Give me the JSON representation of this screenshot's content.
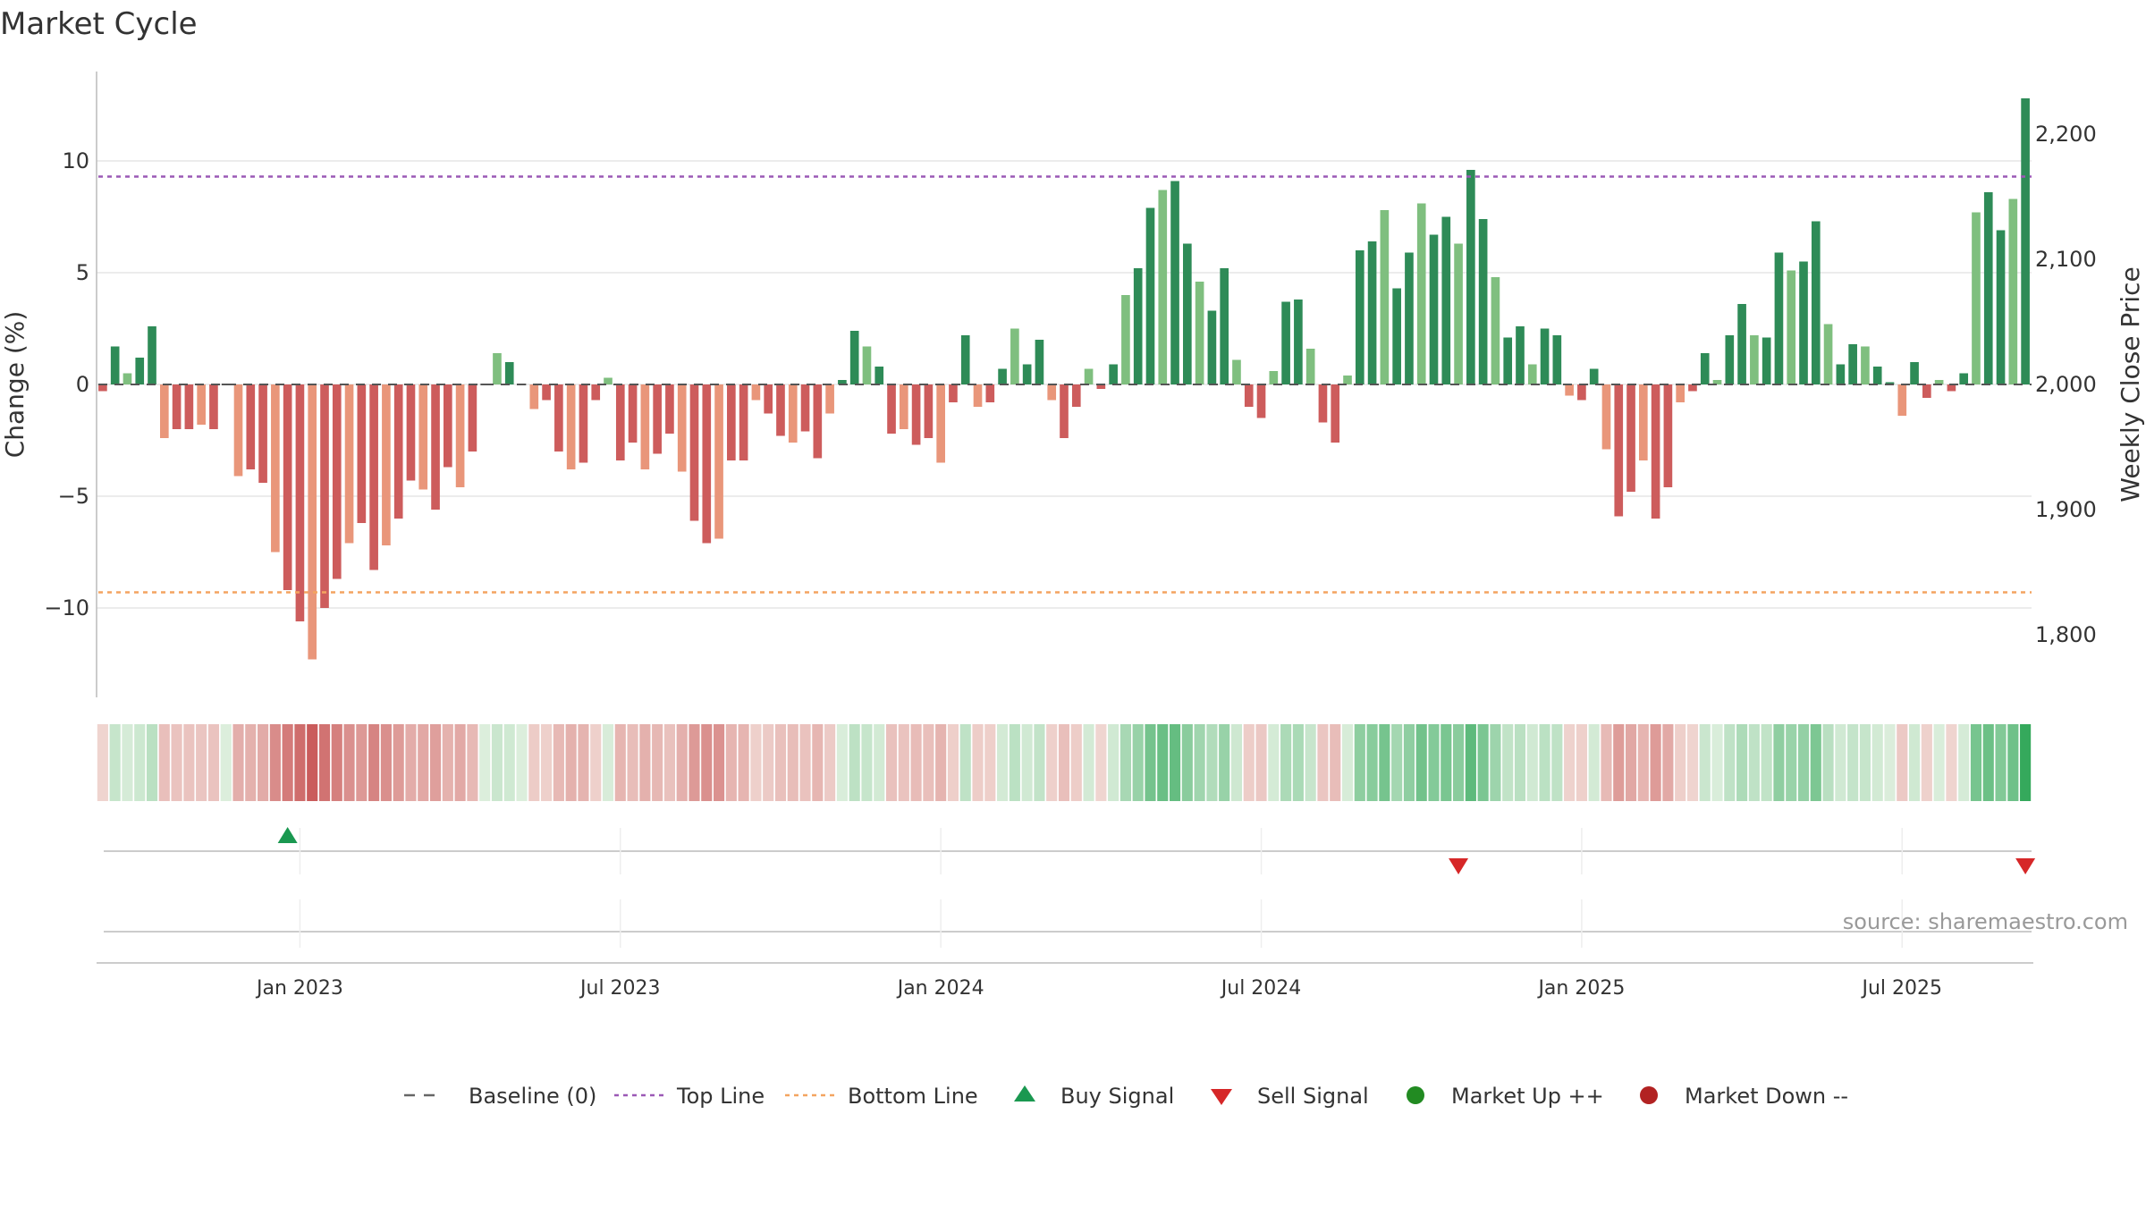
{
  "title": "Market Cycle",
  "source": "source: sharemaestro.com",
  "colors": {
    "up_strong": "#2e8b57",
    "up_light": "#7fbf7f",
    "down_strong": "#cd5c5c",
    "down_light": "#e9967a",
    "top_line": "#9b59b6",
    "bottom_line": "#f4a460",
    "buy": "#1a9850",
    "sell": "#d62728",
    "market_up": "#228b22",
    "market_down": "#b22222"
  },
  "chart_data": {
    "type": "bar",
    "ylabel_left": "Change (%)",
    "ylabel_right": "Weekly Close Price",
    "ylim_left": [
      -14,
      14
    ],
    "ylim_right": [
      1750,
      2250
    ],
    "yticks_left": [
      {
        "v": 10,
        "label": "10"
      },
      {
        "v": 5,
        "label": "5"
      },
      {
        "v": 0,
        "label": "0"
      },
      {
        "v": -5,
        "label": "−5"
      },
      {
        "v": -10,
        "label": "−10"
      }
    ],
    "yticks_right": [
      {
        "v": 2200,
        "label": "2,200"
      },
      {
        "v": 2100,
        "label": "2,100"
      },
      {
        "v": 2000,
        "label": "2,000"
      },
      {
        "v": 1900,
        "label": "1,900"
      },
      {
        "v": 1800,
        "label": "1,800"
      }
    ],
    "top_line": 9.3,
    "bottom_line": -9.3,
    "xticks": [
      {
        "i": 16,
        "label": "Jan 2023"
      },
      {
        "i": 42,
        "label": "Jul 2023"
      },
      {
        "i": 68,
        "label": "Jan 2024"
      },
      {
        "i": 94,
        "label": "Jul 2024"
      },
      {
        "i": 120,
        "label": "Jan 2025"
      },
      {
        "i": 146,
        "label": "Jul 2025"
      }
    ],
    "values": [
      -0.3,
      1.7,
      0.5,
      1.2,
      2.6,
      -2.4,
      -2.0,
      -2.0,
      -1.8,
      -2.0,
      0,
      -4.1,
      -3.8,
      -4.4,
      -7.5,
      -9.2,
      -10.6,
      -12.3,
      -10.0,
      -8.7,
      -7.1,
      -6.2,
      -8.3,
      -7.2,
      -6.0,
      -4.3,
      -4.7,
      -5.6,
      -3.7,
      -4.6,
      -3.0,
      0,
      1.4,
      1.0,
      0,
      -1.1,
      -0.7,
      -3.0,
      -3.8,
      -3.5,
      -0.7,
      0.3,
      -3.4,
      -2.6,
      -3.8,
      -3.1,
      -2.2,
      -3.9,
      -6.1,
      -7.1,
      -6.9,
      -3.4,
      -3.4,
      -0.7,
      -1.3,
      -2.3,
      -2.6,
      -2.1,
      -3.3,
      -1.3,
      0.2,
      2.4,
      1.7,
      0.8,
      -2.2,
      -2.0,
      -2.7,
      -2.4,
      -3.5,
      -0.8,
      2.2,
      -1.0,
      -0.8,
      0.7,
      2.5,
      0.9,
      2.0,
      -0.7,
      -2.4,
      -1.0,
      0.7,
      -0.2,
      0.9,
      4.0,
      5.2,
      7.9,
      8.7,
      9.1,
      6.3,
      4.6,
      3.3,
      5.2,
      1.1,
      -1.0,
      -1.5,
      0.6,
      3.7,
      3.8,
      1.6,
      -1.7,
      -2.6,
      0.4,
      6.0,
      6.4,
      7.8,
      4.3,
      5.9,
      8.1,
      6.7,
      7.5,
      6.3,
      9.6,
      7.4,
      4.8,
      2.1,
      2.6,
      0.9,
      2.5,
      2.2,
      -0.5,
      -0.7,
      0.7,
      -2.9,
      -5.9,
      -4.8,
      -3.4,
      -6.0,
      -4.6,
      -0.8,
      -0.3,
      1.4,
      0.2,
      2.2,
      3.6,
      2.2,
      2.1,
      5.9,
      5.1,
      5.5,
      7.3,
      2.7,
      0.9,
      1.8,
      1.7,
      0.8,
      0.1,
      -1.4,
      1.0,
      -0.6,
      0.2,
      -0.3,
      0.5,
      7.7,
      8.6,
      6.9,
      8.3,
      12.8
    ],
    "buy_signals": [
      15
    ],
    "sell_signals": [
      110,
      156
    ]
  },
  "legend": [
    {
      "label": "Baseline (0)",
      "icon": "dash-gray"
    },
    {
      "label": "Top Line",
      "icon": "dot-purple"
    },
    {
      "label": "Bottom Line",
      "icon": "dot-orange"
    },
    {
      "label": "Buy Signal",
      "icon": "triangle-up-green"
    },
    {
      "label": "Sell Signal",
      "icon": "triangle-down-red"
    },
    {
      "label": "Market Up ++",
      "icon": "circle-green"
    },
    {
      "label": "Market Down --",
      "icon": "circle-red"
    }
  ]
}
